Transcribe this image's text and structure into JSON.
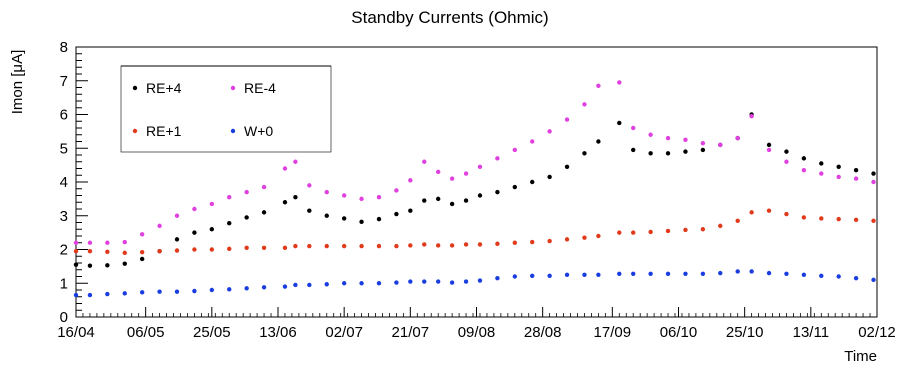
{
  "chart_data": {
    "type": "scatter",
    "title": "Standby Currents (Ohmic)",
    "xlabel": "Time",
    "ylabel": "Imon [μA]",
    "ylim": [
      0,
      8
    ],
    "xlim": [
      "2018-04-16",
      "2018-12-02"
    ],
    "grid": false,
    "legend_position": "top-left",
    "x_tick_labels": [
      "16/04",
      "06/05",
      "25/05",
      "13/06",
      "02/07",
      "21/07",
      "09/08",
      "28/08",
      "17/09",
      "06/10",
      "25/10",
      "13/11",
      "02/12"
    ],
    "x_tick_dates": [
      "2018-04-16",
      "2018-05-06",
      "2018-05-25",
      "2018-06-13",
      "2018-07-02",
      "2018-07-21",
      "2018-08-09",
      "2018-08-28",
      "2018-09-17",
      "2018-10-06",
      "2018-10-25",
      "2018-11-13",
      "2018-12-02"
    ],
    "y_tick_labels": [
      "0",
      "1",
      "2",
      "3",
      "4",
      "5",
      "6",
      "7",
      "8"
    ],
    "series": [
      {
        "name": "RE+4",
        "color": "#000000",
        "points": [
          [
            "2018-04-16",
            1.55
          ],
          [
            "2018-04-20",
            1.52
          ],
          [
            "2018-04-25",
            1.53
          ],
          [
            "2018-04-30",
            1.58
          ],
          [
            "2018-05-05",
            1.72
          ],
          [
            "2018-05-10",
            1.95
          ],
          [
            "2018-05-15",
            2.3
          ],
          [
            "2018-05-20",
            2.5
          ],
          [
            "2018-05-25",
            2.6
          ],
          [
            "2018-05-30",
            2.78
          ],
          [
            "2018-06-04",
            2.95
          ],
          [
            "2018-06-09",
            3.1
          ],
          [
            "2018-06-15",
            3.4
          ],
          [
            "2018-06-18",
            3.55
          ],
          [
            "2018-06-22",
            3.15
          ],
          [
            "2018-06-27",
            3.0
          ],
          [
            "2018-07-02",
            2.92
          ],
          [
            "2018-07-07",
            2.82
          ],
          [
            "2018-07-12",
            2.9
          ],
          [
            "2018-07-17",
            3.05
          ],
          [
            "2018-07-21",
            3.15
          ],
          [
            "2018-07-25",
            3.45
          ],
          [
            "2018-07-29",
            3.5
          ],
          [
            "2018-08-02",
            3.35
          ],
          [
            "2018-08-06",
            3.45
          ],
          [
            "2018-08-10",
            3.6
          ],
          [
            "2018-08-15",
            3.7
          ],
          [
            "2018-08-20",
            3.85
          ],
          [
            "2018-08-25",
            4.0
          ],
          [
            "2018-08-30",
            4.15
          ],
          [
            "2018-09-04",
            4.45
          ],
          [
            "2018-09-09",
            4.85
          ],
          [
            "2018-09-13",
            5.2
          ],
          [
            "2018-09-19",
            5.75
          ],
          [
            "2018-09-23",
            4.95
          ],
          [
            "2018-09-28",
            4.85
          ],
          [
            "2018-10-03",
            4.85
          ],
          [
            "2018-10-08",
            4.9
          ],
          [
            "2018-10-13",
            4.95
          ],
          [
            "2018-10-18",
            5.1
          ],
          [
            "2018-10-23",
            5.3
          ],
          [
            "2018-10-27",
            6.0
          ],
          [
            "2018-11-01",
            5.1
          ],
          [
            "2018-11-06",
            4.9
          ],
          [
            "2018-11-11",
            4.7
          ],
          [
            "2018-11-16",
            4.55
          ],
          [
            "2018-11-21",
            4.45
          ],
          [
            "2018-11-26",
            4.35
          ],
          [
            "2018-12-01",
            4.25
          ]
        ]
      },
      {
        "name": "RE-4",
        "color": "#e040e0",
        "points": [
          [
            "2018-04-16",
            2.2
          ],
          [
            "2018-04-20",
            2.2
          ],
          [
            "2018-04-25",
            2.2
          ],
          [
            "2018-04-30",
            2.22
          ],
          [
            "2018-05-05",
            2.45
          ],
          [
            "2018-05-10",
            2.7
          ],
          [
            "2018-05-15",
            3.0
          ],
          [
            "2018-05-20",
            3.2
          ],
          [
            "2018-05-25",
            3.35
          ],
          [
            "2018-05-30",
            3.55
          ],
          [
            "2018-06-04",
            3.7
          ],
          [
            "2018-06-09",
            3.85
          ],
          [
            "2018-06-15",
            4.4
          ],
          [
            "2018-06-18",
            4.6
          ],
          [
            "2018-06-22",
            3.9
          ],
          [
            "2018-06-27",
            3.7
          ],
          [
            "2018-07-02",
            3.6
          ],
          [
            "2018-07-07",
            3.5
          ],
          [
            "2018-07-12",
            3.55
          ],
          [
            "2018-07-17",
            3.75
          ],
          [
            "2018-07-21",
            4.05
          ],
          [
            "2018-07-25",
            4.6
          ],
          [
            "2018-07-29",
            4.3
          ],
          [
            "2018-08-02",
            4.1
          ],
          [
            "2018-08-06",
            4.25
          ],
          [
            "2018-08-10",
            4.45
          ],
          [
            "2018-08-15",
            4.7
          ],
          [
            "2018-08-20",
            4.95
          ],
          [
            "2018-08-25",
            5.2
          ],
          [
            "2018-08-30",
            5.5
          ],
          [
            "2018-09-04",
            5.85
          ],
          [
            "2018-09-09",
            6.3
          ],
          [
            "2018-09-13",
            6.85
          ],
          [
            "2018-09-19",
            6.95
          ],
          [
            "2018-09-23",
            5.6
          ],
          [
            "2018-09-28",
            5.4
          ],
          [
            "2018-10-03",
            5.3
          ],
          [
            "2018-10-08",
            5.25
          ],
          [
            "2018-10-13",
            5.15
          ],
          [
            "2018-10-18",
            5.1
          ],
          [
            "2018-10-23",
            5.3
          ],
          [
            "2018-10-27",
            5.95
          ],
          [
            "2018-11-01",
            4.95
          ],
          [
            "2018-11-06",
            4.6
          ],
          [
            "2018-11-11",
            4.35
          ],
          [
            "2018-11-16",
            4.25
          ],
          [
            "2018-11-21",
            4.15
          ],
          [
            "2018-11-26",
            4.1
          ],
          [
            "2018-12-01",
            4.0
          ]
        ]
      },
      {
        "name": "RE+1",
        "color": "#e03a1a",
        "points": [
          [
            "2018-04-16",
            1.95
          ],
          [
            "2018-04-20",
            1.95
          ],
          [
            "2018-04-25",
            1.93
          ],
          [
            "2018-04-30",
            1.9
          ],
          [
            "2018-05-05",
            1.92
          ],
          [
            "2018-05-10",
            1.95
          ],
          [
            "2018-05-15",
            1.97
          ],
          [
            "2018-05-20",
            2.0
          ],
          [
            "2018-05-25",
            2.0
          ],
          [
            "2018-05-30",
            2.02
          ],
          [
            "2018-06-04",
            2.05
          ],
          [
            "2018-06-09",
            2.05
          ],
          [
            "2018-06-15",
            2.05
          ],
          [
            "2018-06-18",
            2.1
          ],
          [
            "2018-06-22",
            2.1
          ],
          [
            "2018-06-27",
            2.1
          ],
          [
            "2018-07-02",
            2.1
          ],
          [
            "2018-07-07",
            2.1
          ],
          [
            "2018-07-12",
            2.1
          ],
          [
            "2018-07-17",
            2.1
          ],
          [
            "2018-07-21",
            2.12
          ],
          [
            "2018-07-25",
            2.15
          ],
          [
            "2018-07-29",
            2.12
          ],
          [
            "2018-08-02",
            2.12
          ],
          [
            "2018-08-06",
            2.15
          ],
          [
            "2018-08-10",
            2.15
          ],
          [
            "2018-08-15",
            2.17
          ],
          [
            "2018-08-20",
            2.2
          ],
          [
            "2018-08-25",
            2.22
          ],
          [
            "2018-08-30",
            2.25
          ],
          [
            "2018-09-04",
            2.3
          ],
          [
            "2018-09-09",
            2.35
          ],
          [
            "2018-09-13",
            2.4
          ],
          [
            "2018-09-19",
            2.5
          ],
          [
            "2018-09-23",
            2.5
          ],
          [
            "2018-09-28",
            2.52
          ],
          [
            "2018-10-03",
            2.55
          ],
          [
            "2018-10-08",
            2.58
          ],
          [
            "2018-10-13",
            2.6
          ],
          [
            "2018-10-18",
            2.7
          ],
          [
            "2018-10-23",
            2.85
          ],
          [
            "2018-10-27",
            3.1
          ],
          [
            "2018-11-01",
            3.15
          ],
          [
            "2018-11-06",
            3.05
          ],
          [
            "2018-11-11",
            2.95
          ],
          [
            "2018-11-16",
            2.92
          ],
          [
            "2018-11-21",
            2.9
          ],
          [
            "2018-11-26",
            2.88
          ],
          [
            "2018-12-01",
            2.85
          ]
        ]
      },
      {
        "name": "W+0",
        "color": "#1a3de0",
        "points": [
          [
            "2018-04-16",
            0.65
          ],
          [
            "2018-04-20",
            0.65
          ],
          [
            "2018-04-25",
            0.68
          ],
          [
            "2018-04-30",
            0.7
          ],
          [
            "2018-05-05",
            0.73
          ],
          [
            "2018-05-10",
            0.75
          ],
          [
            "2018-05-15",
            0.75
          ],
          [
            "2018-05-20",
            0.77
          ],
          [
            "2018-05-25",
            0.8
          ],
          [
            "2018-05-30",
            0.82
          ],
          [
            "2018-06-04",
            0.85
          ],
          [
            "2018-06-09",
            0.88
          ],
          [
            "2018-06-15",
            0.9
          ],
          [
            "2018-06-18",
            0.95
          ],
          [
            "2018-06-22",
            0.95
          ],
          [
            "2018-06-27",
            0.97
          ],
          [
            "2018-07-02",
            1.0
          ],
          [
            "2018-07-07",
            1.0
          ],
          [
            "2018-07-12",
            1.0
          ],
          [
            "2018-07-17",
            1.02
          ],
          [
            "2018-07-21",
            1.05
          ],
          [
            "2018-07-25",
            1.05
          ],
          [
            "2018-07-29",
            1.05
          ],
          [
            "2018-08-02",
            1.02
          ],
          [
            "2018-08-06",
            1.05
          ],
          [
            "2018-08-10",
            1.08
          ],
          [
            "2018-08-15",
            1.15
          ],
          [
            "2018-08-20",
            1.2
          ],
          [
            "2018-08-25",
            1.22
          ],
          [
            "2018-08-30",
            1.22
          ],
          [
            "2018-09-04",
            1.25
          ],
          [
            "2018-09-09",
            1.25
          ],
          [
            "2018-09-13",
            1.25
          ],
          [
            "2018-09-19",
            1.28
          ],
          [
            "2018-09-23",
            1.28
          ],
          [
            "2018-09-28",
            1.28
          ],
          [
            "2018-10-03",
            1.28
          ],
          [
            "2018-10-08",
            1.28
          ],
          [
            "2018-10-13",
            1.28
          ],
          [
            "2018-10-18",
            1.3
          ],
          [
            "2018-10-23",
            1.35
          ],
          [
            "2018-10-27",
            1.35
          ],
          [
            "2018-11-01",
            1.3
          ],
          [
            "2018-11-06",
            1.28
          ],
          [
            "2018-11-11",
            1.25
          ],
          [
            "2018-11-16",
            1.22
          ],
          [
            "2018-11-21",
            1.2
          ],
          [
            "2018-11-26",
            1.15
          ],
          [
            "2018-12-01",
            1.1
          ]
        ]
      }
    ]
  }
}
